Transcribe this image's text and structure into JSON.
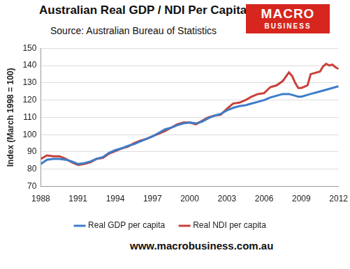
{
  "chart_data": {
    "type": "line",
    "title": "Australian Real GDP / NDI Per Capita",
    "subtitle": "Source: Australian Bureau of Statistics",
    "logo": [
      "MACRO",
      "BUSINESS"
    ],
    "footer": "www.macrobusiness.com.au",
    "y_label": "Index (March 1998 = 100)",
    "x": [
      1988,
      1988.5,
      1989,
      1989.5,
      1990,
      1990.5,
      1991,
      1991.5,
      1992,
      1992.5,
      1993,
      1993.5,
      1994,
      1994.5,
      1995,
      1995.5,
      1996,
      1996.5,
      1997,
      1997.5,
      1998,
      1998.5,
      1999,
      1999.5,
      2000,
      2000.5,
      2001,
      2001.5,
      2002,
      2002.5,
      2003,
      2003.5,
      2004,
      2004.5,
      2005,
      2005.5,
      2006,
      2006.5,
      2007,
      2007.5,
      2008,
      2008.25,
      2008.5,
      2008.75,
      2009,
      2009.5,
      2009.75,
      2010,
      2010.5,
      2010.75,
      2011,
      2011.25,
      2011.5,
      2011.75,
      2012
    ],
    "series": [
      {
        "name": "Real GDP per capita",
        "color": "#3d7cc9",
        "values": [
          83,
          85.5,
          86,
          86,
          85.5,
          84.5,
          83,
          83.5,
          84.5,
          86,
          87,
          89.5,
          91,
          92,
          93.5,
          94.5,
          96,
          97.5,
          99,
          101,
          103,
          104,
          105.5,
          106.5,
          107,
          106.5,
          107.5,
          109.5,
          111,
          112,
          114,
          115.5,
          116.5,
          117,
          118,
          119,
          120,
          121.5,
          122.5,
          123.5,
          123.5,
          123,
          122.5,
          122,
          122,
          123,
          123.5,
          124,
          125,
          125.5,
          126,
          126.5,
          127,
          127.5,
          128
        ]
      },
      {
        "name": "Real NDI per capita",
        "color": "#c8413a",
        "values": [
          86,
          88,
          87.5,
          87.5,
          86,
          84,
          82.5,
          83,
          84,
          86,
          86.5,
          89,
          90.5,
          92,
          93,
          95,
          96.5,
          97.5,
          99,
          100.5,
          102,
          104,
          106,
          107,
          107,
          106,
          108,
          110,
          111,
          111.5,
          115,
          118,
          118.5,
          120,
          122,
          123.5,
          124,
          127.5,
          128.5,
          131,
          136,
          134,
          130,
          127,
          127,
          128.5,
          135,
          135.5,
          136.5,
          139.5,
          141,
          140,
          140.5,
          139,
          138
        ]
      }
    ],
    "xlim": [
      1988,
      2012
    ],
    "xticks": [
      1988,
      1991,
      1994,
      1997,
      2000,
      2003,
      2006,
      2009,
      2012
    ],
    "ylim": [
      70,
      150
    ],
    "yticks": [
      70,
      80,
      90,
      100,
      110,
      120,
      130,
      140,
      150
    ],
    "grid": "y",
    "legend": "bottom"
  }
}
